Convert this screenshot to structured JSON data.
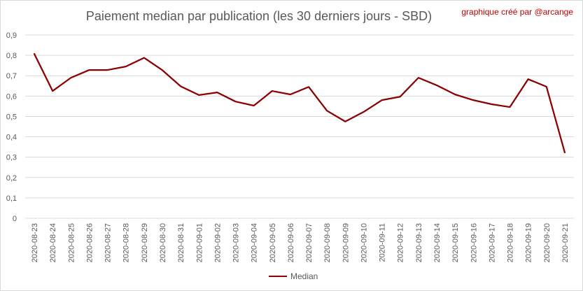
{
  "chart_data": {
    "type": "line",
    "title": "Paiement median par publication (les 30 derniers jours - SBD)",
    "credit": "graphique créé par @arcange",
    "categories": [
      "2020-08-23",
      "2020-08-24",
      "2020-08-25",
      "2020-08-26",
      "2020-08-27",
      "2020-08-28",
      "2020-08-29",
      "2020-08-30",
      "2020-08-31",
      "2020-09-01",
      "2020-09-02",
      "2020-09-03",
      "2020-09-04",
      "2020-09-05",
      "2020-09-06",
      "2020-09-07",
      "2020-09-08",
      "2020-09-09",
      "2020-09-10",
      "2020-09-11",
      "2020-09-12",
      "2020-09-13",
      "2020-09-14",
      "2020-09-15",
      "2020-09-16",
      "2020-09-17",
      "2020-09-18",
      "2020-09-19",
      "2020-09-20",
      "2020-09-21"
    ],
    "series": [
      {
        "name": "Median",
        "color": "#8b0000",
        "values": [
          0.807,
          0.625,
          0.69,
          0.728,
          0.728,
          0.745,
          0.788,
          0.727,
          0.648,
          0.605,
          0.618,
          0.573,
          0.553,
          0.625,
          0.608,
          0.645,
          0.528,
          0.475,
          0.522,
          0.58,
          0.597,
          0.69,
          0.653,
          0.608,
          0.58,
          0.56,
          0.546,
          0.683,
          0.646,
          0.323
        ]
      }
    ],
    "yticks": [
      "0",
      "0,1",
      "0,2",
      "0,3",
      "0,4",
      "0,5",
      "0,6",
      "0,7",
      "0,8",
      "0,9"
    ],
    "ylim": [
      0,
      0.9
    ],
    "grid": true,
    "legend": "bottom"
  }
}
